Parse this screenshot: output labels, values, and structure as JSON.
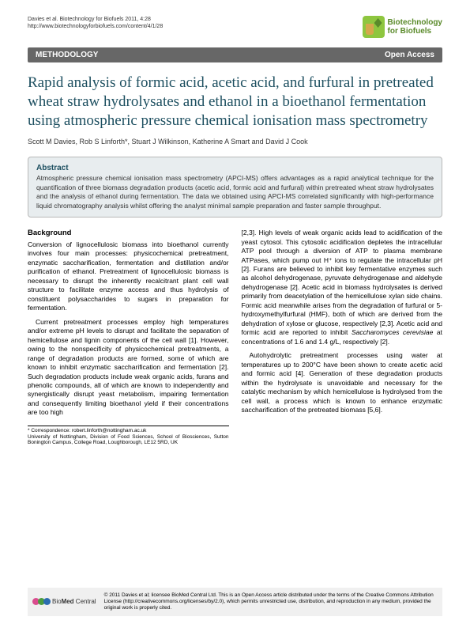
{
  "header": {
    "citation": "Davies et al. Biotechnology for Biofuels 2011, 4:28",
    "url": "http://www.biotechnologyforbiofuels.com/content/4/1/28",
    "journal_name_line1": "Biotechnology",
    "journal_name_line2": "for Biofuels"
  },
  "bar": {
    "category": "METHODOLOGY",
    "access": "Open Access"
  },
  "title": "Rapid analysis of formic acid, acetic acid, and furfural in pretreated wheat straw hydrolysates and ethanol in a bioethanol fermentation using atmospheric pressure chemical ionisation mass spectrometry",
  "authors": "Scott M Davies, Rob S Linforth*, Stuart J Wilkinson, Katherine A Smart and David J Cook",
  "abstract": {
    "heading": "Abstract",
    "text": "Atmospheric pressure chemical ionisation mass spectrometry (APCI-MS) offers advantages as a rapid analytical technique for the quantification of three biomass degradation products (acetic acid, formic acid and furfural) within pretreated wheat straw hydrolysates and the analysis of ethanol during fermentation. The data we obtained using APCI-MS correlated significantly with high-performance liquid chromatography analysis whilst offering the analyst minimal sample preparation and faster sample throughput."
  },
  "background": {
    "heading": "Background",
    "p1": "Conversion of lignocellulosic biomass into bioethanol currently involves four main processes: physicochemical pretreatment, enzymatic saccharification, fermentation and distillation and/or purification of ethanol. Pretreatment of lignocellulosic biomass is necessary to disrupt the inherently recalcitrant plant cell wall structure to facilitate enzyme access and thus hydrolysis of constituent polysaccharides to sugars in preparation for fermentation.",
    "p2": "Current pretreatment processes employ high temperatures and/or extreme pH levels to disrupt and facilitate the separation of hemicellulose and lignin components of the cell wall [1]. However, owing to the nonspecificity of physicochemical pretreatments, a range of degradation products are formed, some of which are known to inhibit enzymatic saccharification and fermentation [2]. Such degradation products include weak organic acids, furans and phenolic compounds, all of which are known to independently and synergistically disrupt yeast metabolism, impairing fermentation and consequently limiting bioethanol yield if their concentrations are too high",
    "p3a": "[2,3]. High levels of weak organic acids lead to acidification of the yeast cytosol. This cytosolic acidification depletes the intracellular ATP pool through a diversion of ATP to plasma membrane ATPases, which pump out H⁺ ions to regulate the intracellular pH [2]. Furans are believed to inhibit key fermentative enzymes such as alcohol dehydrogenase, pyruvate dehydrogenase and aldehyde dehydrogenase [2]. Acetic acid in biomass hydrolysates is derived primarily from deacetylation of the hemicellulose xylan side chains. Formic acid meanwhile arises from the degradation of furfural or 5-hydroxymethylfurfural (HMF), both of which are derived from the dehydration of xylose or glucose, respectively [2,3]. Acetic acid and formic acid are reported to inhibit ",
    "p3b": " at concentrations of 1.6 and 1.4 g/L, respectively [2].",
    "species": "Saccharomyces cerevisiae",
    "p4": "Autohydrolytic pretreatment processes using water at temperatures up to 200°C have been shown to create acetic acid and formic acid [4]. Generation of these degradation products within the hydrolysate is unavoidable and necessary for the catalytic mechanism by which hemicellulose is hydrolysed from the cell wall, a process which is known to enhance enzymatic saccharification of the pretreated biomass [5,6]."
  },
  "correspondence": {
    "line1": "* Correspondence: robert.linforth@nottingham.ac.uk",
    "line2": "University of Nottingham, Division of Food Sciences, School of Biosciences, Sutton Bonington Campus, College Road, Loughborough, LE12 5RD, UK"
  },
  "footer": {
    "bmc": "BioMed Central",
    "license": "© 2011 Davies et al; licensee BioMed Central Ltd. This is an Open Access article distributed under the terms of the Creative Commons Attribution License (http://creativecommons.org/licenses/by/2.0), which permits unrestricted use, distribution, and reproduction in any medium, provided the original work is properly cited."
  },
  "colors": {
    "bar_bg": "#676767",
    "title_color": "#1d4f60",
    "abstract_bg": "#e8edef",
    "abstract_border": "#b8b8b8",
    "logo_green": "#8ec63f",
    "bmc_c1": "#d94c8e",
    "bmc_c2": "#4a9b3f",
    "bmc_c3": "#2b6cb0"
  }
}
